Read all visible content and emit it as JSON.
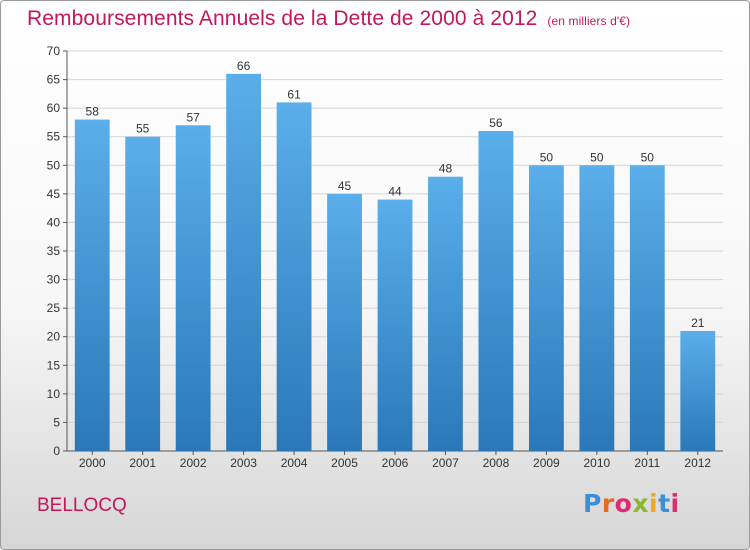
{
  "title": "Remboursements Annuels de la Dette de 2000 à 2012",
  "title_unit": "(en milliers d'€)",
  "commune": "BELLOCQ",
  "logo": {
    "text": "Proxiti",
    "letter_colors": [
      "#3a8fd6",
      "#e96a1c",
      "#e02b6e",
      "#8ab82c",
      "#f2a81d",
      "#3a8fd6",
      "#e02b6e"
    ]
  },
  "colors": {
    "title": "#c2185b",
    "bar_top": "#5aaeea",
    "bar_bottom": "#2a78b8",
    "grid": "#d4d4d4"
  },
  "chart_data": {
    "type": "bar",
    "title": "Remboursements Annuels de la Dette de 2000 à 2012",
    "categories": [
      "2000",
      "2001",
      "2002",
      "2003",
      "2004",
      "2005",
      "2006",
      "2007",
      "2008",
      "2009",
      "2010",
      "2011",
      "2012"
    ],
    "values": [
      58,
      55,
      57,
      66,
      61,
      45,
      44,
      48,
      56,
      50,
      50,
      50,
      21
    ],
    "ylim": [
      0,
      70
    ],
    "yticks": [
      0,
      5,
      10,
      15,
      20,
      25,
      30,
      35,
      40,
      45,
      50,
      55,
      60,
      65,
      70
    ],
    "grid": true,
    "data_labels": true,
    "legend": "none"
  }
}
